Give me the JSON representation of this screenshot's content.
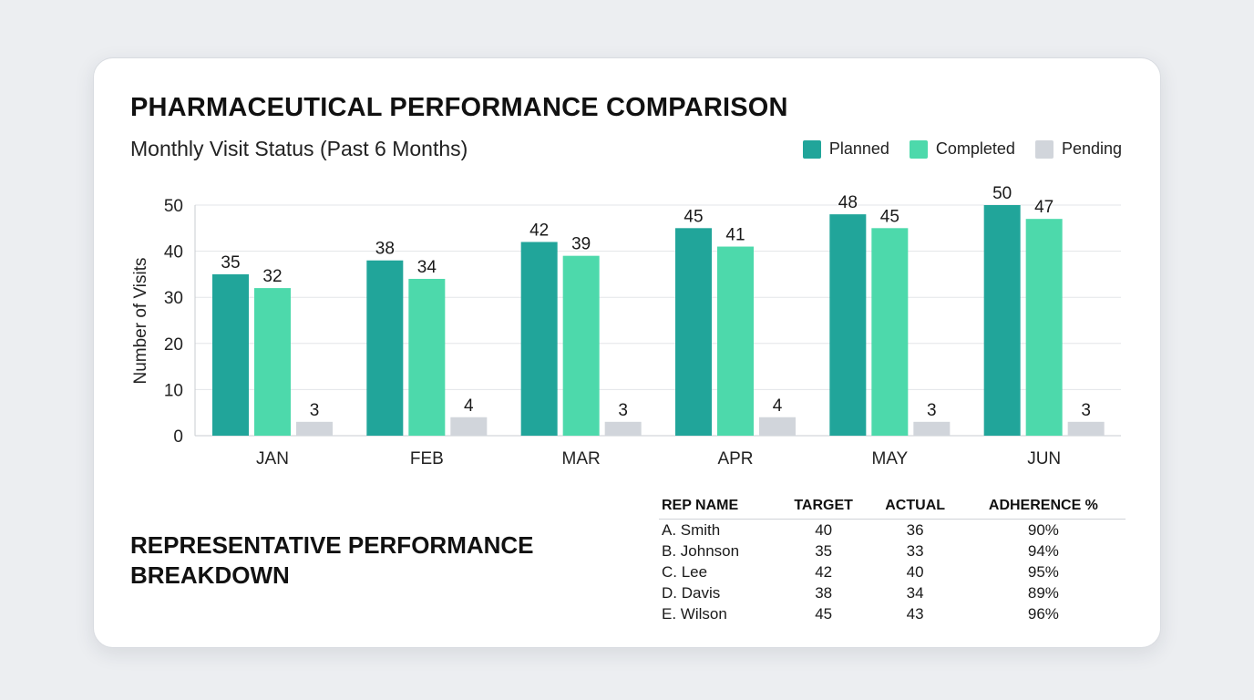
{
  "header": {
    "title": "PHARMACEUTICAL PERFORMANCE COMPARISON",
    "subtitle": "Monthly Visit Status (Past 6 Months)"
  },
  "legend": [
    {
      "label": "Planned",
      "color": "#21a59a"
    },
    {
      "label": "Completed",
      "color": "#4dd9ab"
    },
    {
      "label": "Pending",
      "color": "#d1d5db"
    }
  ],
  "chart_data": {
    "type": "bar",
    "title": "Monthly Visit Status (Past 6 Months)",
    "xlabel": "",
    "ylabel": "Number of Visits",
    "ylim": [
      0,
      50
    ],
    "yticks": [
      0,
      10,
      20,
      30,
      40,
      50
    ],
    "grid": true,
    "legend_position": "top-right",
    "categories": [
      "JAN",
      "FEB",
      "MAR",
      "APR",
      "MAY",
      "JUN"
    ],
    "series": [
      {
        "name": "Planned",
        "color": "#21a59a",
        "values": [
          35,
          38,
          42,
          45,
          48,
          50
        ]
      },
      {
        "name": "Completed",
        "color": "#4dd9ab",
        "values": [
          32,
          34,
          39,
          41,
          45,
          47
        ]
      },
      {
        "name": "Pending",
        "color": "#d1d5db",
        "values": [
          3,
          4,
          3,
          4,
          3,
          3
        ]
      }
    ]
  },
  "breakdown": {
    "title": "REPRESENTATIVE PERFORMANCE BREAKDOWN",
    "columns": [
      "REP NAME",
      "TARGET",
      "ACTUAL",
      "ADHERENCE %"
    ],
    "rows": [
      [
        "A. Smith",
        "40",
        "36",
        "90%"
      ],
      [
        "B. Johnson",
        "35",
        "33",
        "94%"
      ],
      [
        "C. Lee",
        "42",
        "40",
        "95%"
      ],
      [
        "D. Davis",
        "38",
        "34",
        "89%"
      ],
      [
        "E. Wilson",
        "45",
        "43",
        "96%"
      ]
    ]
  }
}
